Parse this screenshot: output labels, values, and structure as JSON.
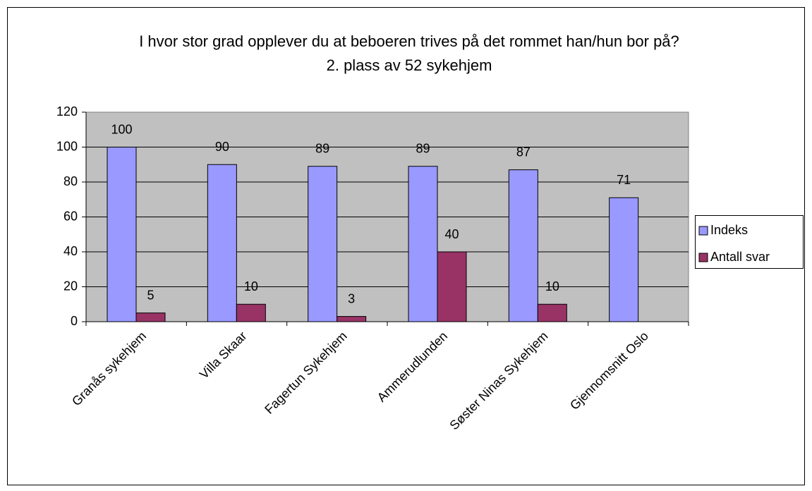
{
  "chart_data": {
    "type": "bar",
    "title": "I hvor stor grad opplever du at beboeren trives på det rommet han/hun bor på?",
    "subtitle": "2. plass av 52 sykehjem",
    "categories": [
      "Granås sykehjem",
      "Villa Skaar",
      "Fagertun Sykehjem",
      "Ammerudlunden",
      "Søster Ninas Sykehjem",
      "Gjennomsnitt Oslo"
    ],
    "series": [
      {
        "name": "Indeks",
        "color": "#9999ff",
        "values": [
          100,
          90,
          89,
          89,
          87,
          71
        ]
      },
      {
        "name": "Antall svar",
        "color": "#993366",
        "values": [
          5,
          10,
          3,
          40,
          10,
          null
        ]
      }
    ],
    "ylim": [
      0,
      120
    ],
    "yticks": [
      0,
      20,
      40,
      60,
      80,
      100,
      120
    ],
    "grid": true,
    "legend": "right"
  }
}
